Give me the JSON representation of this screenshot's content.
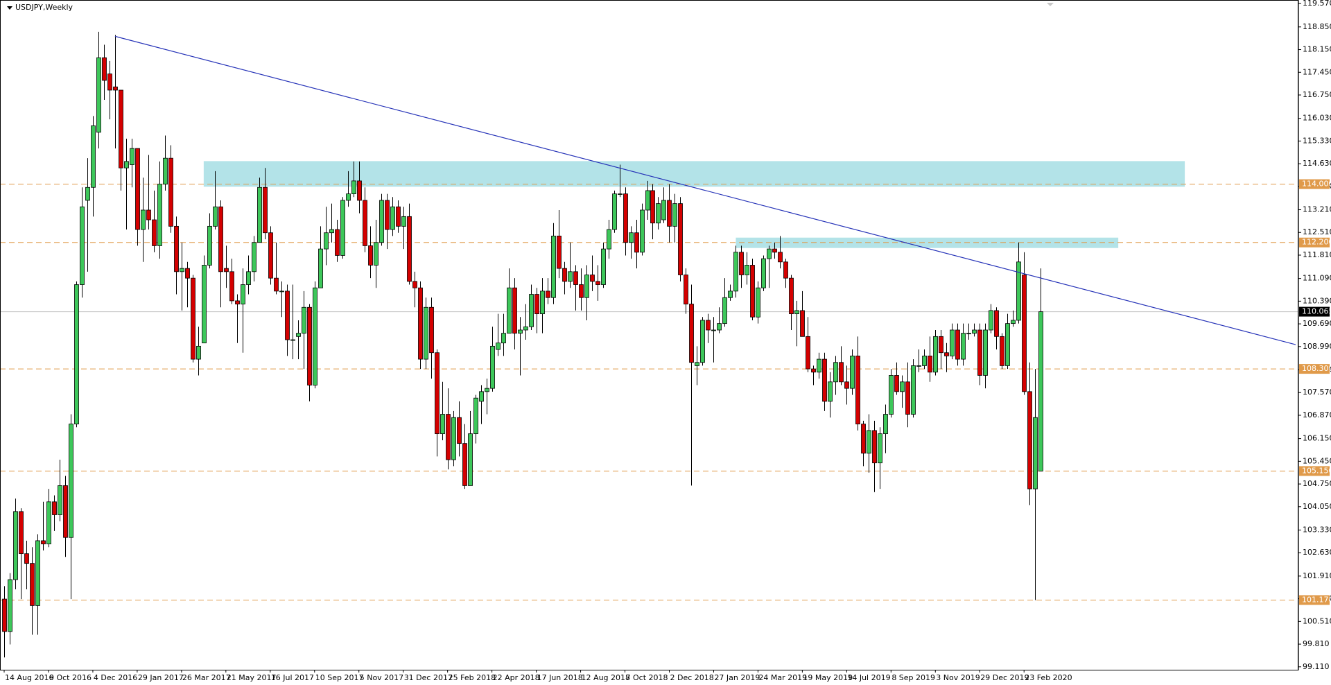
{
  "chart_data": {
    "type": "candlestick",
    "title": "USDJPY,Weekly",
    "up_color": "#3dc75a",
    "down_color": "#d40000",
    "ylim": [
      99.02,
      119.68
    ],
    "yticks": [
      {
        "value": 119.57,
        "label": "119.570"
      },
      {
        "value": 118.85,
        "label": "118.850"
      },
      {
        "value": 118.15,
        "label": "118.150"
      },
      {
        "value": 117.45,
        "label": "117.450"
      },
      {
        "value": 116.75,
        "label": "116.750"
      },
      {
        "value": 116.03,
        "label": "116.030"
      },
      {
        "value": 115.33,
        "label": "115.330"
      },
      {
        "value": 114.63,
        "label": "114.630"
      },
      {
        "value": 113.93,
        "label": "113.930"
      },
      {
        "value": 113.21,
        "label": "113.210"
      },
      {
        "value": 112.51,
        "label": "112.510"
      },
      {
        "value": 111.81,
        "label": "111.810"
      },
      {
        "value": 111.09,
        "label": "111.090"
      },
      {
        "value": 110.39,
        "label": "110.390"
      },
      {
        "value": 109.69,
        "label": "109.690"
      },
      {
        "value": 108.99,
        "label": "108.990"
      },
      {
        "value": 108.27,
        "label": "108.270"
      },
      {
        "value": 107.57,
        "label": "107.570"
      },
      {
        "value": 106.87,
        "label": "106.870"
      },
      {
        "value": 106.15,
        "label": "106.150"
      },
      {
        "value": 105.45,
        "label": "105.450"
      },
      {
        "value": 104.75,
        "label": "104.750"
      },
      {
        "value": 104.05,
        "label": "104.050"
      },
      {
        "value": 103.33,
        "label": "103.330"
      },
      {
        "value": 102.63,
        "label": "102.630"
      },
      {
        "value": 101.91,
        "label": "101.910"
      },
      {
        "value": 101.21,
        "label": "101.210"
      },
      {
        "value": 100.51,
        "label": "100.510"
      },
      {
        "value": 99.81,
        "label": "99.810"
      },
      {
        "value": 99.11,
        "label": "99.110"
      }
    ],
    "xlim": [
      -0.75,
      233.5
    ],
    "xticks": [
      {
        "value": 0,
        "label": "14 Aug 2016"
      },
      {
        "value": 8,
        "label": "9 Oct 2016"
      },
      {
        "value": 16,
        "label": "4 Dec 2016"
      },
      {
        "value": 24,
        "label": "29 Jan 2017"
      },
      {
        "value": 32,
        "label": "26 Mar 2017"
      },
      {
        "value": 40,
        "label": "21 May 2017"
      },
      {
        "value": 48,
        "label": "16 Jul 2017"
      },
      {
        "value": 56,
        "label": "10 Sep 2017"
      },
      {
        "value": 64,
        "label": "5 Nov 2017"
      },
      {
        "value": 72,
        "label": "31 Dec 2017"
      },
      {
        "value": 80,
        "label": "25 Feb 2018"
      },
      {
        "value": 88,
        "label": "22 Apr 2018"
      },
      {
        "value": 96,
        "label": "17 Jun 2018"
      },
      {
        "value": 104,
        "label": "12 Aug 2018"
      },
      {
        "value": 112,
        "label": "7 Oct 2018"
      },
      {
        "value": 120,
        "label": "2 Dec 2018"
      },
      {
        "value": 128,
        "label": "27 Jan 2019"
      },
      {
        "value": 136,
        "label": "24 Mar 2019"
      },
      {
        "value": 144,
        "label": "19 May 2019"
      },
      {
        "value": 152,
        "label": "14 Jul 2019"
      },
      {
        "value": 160,
        "label": "8 Sep 2019"
      },
      {
        "value": 168,
        "label": "3 Nov 2019"
      },
      {
        "value": 176,
        "label": "29 Dec 2019"
      },
      {
        "value": 184,
        "label": "23 Feb 2020"
      }
    ],
    "levels": [
      {
        "value": 114.0,
        "label": "114.000"
      },
      {
        "value": 112.2,
        "label": "112.200"
      },
      {
        "value": 108.3,
        "label": "108.300"
      },
      {
        "value": 105.15,
        "label": "105.150"
      },
      {
        "value": 101.17,
        "label": "101.170"
      }
    ],
    "level_color": "#e09a4a",
    "current_price": {
      "value": 110.065,
      "label": "110.065"
    },
    "zones": [
      {
        "x": [
          36,
          213
        ],
        "y": [
          113.92,
          114.71
        ]
      },
      {
        "x": [
          132,
          201
        ],
        "y": [
          112.03,
          112.35
        ]
      }
    ],
    "zone_color": "#b3e3e8",
    "trendline": {
      "x": [
        20,
        233
      ],
      "y": [
        118.56,
        109.05
      ],
      "color": "#2633b8"
    },
    "candles": [
      [
        101.2,
        101.6,
        99.4,
        100.2
      ],
      [
        100.2,
        102.0,
        99.8,
        101.8
      ],
      [
        101.8,
        104.3,
        101.5,
        103.9
      ],
      [
        103.9,
        104.0,
        101.2,
        102.6
      ],
      [
        102.6,
        103.0,
        101.5,
        102.3
      ],
      [
        102.3,
        102.8,
        100.1,
        101.0
      ],
      [
        101.0,
        103.2,
        100.1,
        103.0
      ],
      [
        103.0,
        104.2,
        102.7,
        102.9
      ],
      [
        102.9,
        104.6,
        102.8,
        104.2
      ],
      [
        104.2,
        104.4,
        103.3,
        103.8
      ],
      [
        103.8,
        105.5,
        103.6,
        104.7
      ],
      [
        104.7,
        105.0,
        102.5,
        103.1
      ],
      [
        103.1,
        106.9,
        101.2,
        106.6
      ],
      [
        106.6,
        111.0,
        106.5,
        110.9
      ],
      [
        110.9,
        113.9,
        110.5,
        113.3
      ],
      [
        113.5,
        114.8,
        111.3,
        113.9
      ],
      [
        113.9,
        116.1,
        113.0,
        115.8
      ],
      [
        115.6,
        118.7,
        115.1,
        117.9
      ],
      [
        117.9,
        118.3,
        116.6,
        117.2
      ],
      [
        117.4,
        117.8,
        116.0,
        116.9
      ],
      [
        117.0,
        118.6,
        115.1,
        116.9
      ],
      [
        116.9,
        116.9,
        113.8,
        114.5
      ],
      [
        114.5,
        115.4,
        112.6,
        114.7
      ],
      [
        114.6,
        115.4,
        113.9,
        115.1
      ],
      [
        115.1,
        115.1,
        112.1,
        112.6
      ],
      [
        112.6,
        114.2,
        111.6,
        113.2
      ],
      [
        113.2,
        114.9,
        112.6,
        112.9
      ],
      [
        112.9,
        113.8,
        111.9,
        112.1
      ],
      [
        112.1,
        114.7,
        111.7,
        114.0
      ],
      [
        114.0,
        115.5,
        113.8,
        114.8
      ],
      [
        114.8,
        115.2,
        112.5,
        112.7
      ],
      [
        112.7,
        113.0,
        110.6,
        111.3
      ],
      [
        111.3,
        112.2,
        110.1,
        111.4
      ],
      [
        111.4,
        111.6,
        110.2,
        111.1
      ],
      [
        111.1,
        111.2,
        108.5,
        108.6
      ],
      [
        108.6,
        109.6,
        108.1,
        109.0
      ],
      [
        109.1,
        111.8,
        109.1,
        111.5
      ],
      [
        111.5,
        113.1,
        111.4,
        112.7
      ],
      [
        112.7,
        114.4,
        112.6,
        113.3
      ],
      [
        113.3,
        113.5,
        110.2,
        111.3
      ],
      [
        111.4,
        112.1,
        110.8,
        111.3
      ],
      [
        111.3,
        111.7,
        110.3,
        110.4
      ],
      [
        110.4,
        110.6,
        109.1,
        110.3
      ],
      [
        110.3,
        111.4,
        108.8,
        110.9
      ],
      [
        110.9,
        111.8,
        110.6,
        111.3
      ],
      [
        111.3,
        112.4,
        111.0,
        112.2
      ],
      [
        112.2,
        114.2,
        112.2,
        113.9
      ],
      [
        113.9,
        114.5,
        112.3,
        112.5
      ],
      [
        112.5,
        112.7,
        110.9,
        111.1
      ],
      [
        111.1,
        112.2,
        110.6,
        110.7
      ],
      [
        110.7,
        111.0,
        109.9,
        110.7
      ],
      [
        110.7,
        110.9,
        108.7,
        109.2
      ],
      [
        109.2,
        110.9,
        108.6,
        109.2
      ],
      [
        109.3,
        109.8,
        108.6,
        109.4
      ],
      [
        109.4,
        110.7,
        108.3,
        110.2
      ],
      [
        110.2,
        110.3,
        107.3,
        107.8
      ],
      [
        107.8,
        111.0,
        107.7,
        110.8
      ],
      [
        110.8,
        112.7,
        110.8,
        112.0
      ],
      [
        112.0,
        113.3,
        111.5,
        112.5
      ],
      [
        112.5,
        113.4,
        112.2,
        112.6
      ],
      [
        112.6,
        112.9,
        111.6,
        111.8
      ],
      [
        111.8,
        113.6,
        111.7,
        113.5
      ],
      [
        113.5,
        114.4,
        113.3,
        113.7
      ],
      [
        113.7,
        114.7,
        113.6,
        114.1
      ],
      [
        114.1,
        114.7,
        113.1,
        113.5
      ],
      [
        113.5,
        113.9,
        111.9,
        112.1
      ],
      [
        112.1,
        112.7,
        111.1,
        111.5
      ],
      [
        111.5,
        112.9,
        110.8,
        112.2
      ],
      [
        112.2,
        113.7,
        112.1,
        113.5
      ],
      [
        113.5,
        113.7,
        112.0,
        112.6
      ],
      [
        112.6,
        113.6,
        112.4,
        113.3
      ],
      [
        113.3,
        113.5,
        112.5,
        112.7
      ],
      [
        112.7,
        113.3,
        112.0,
        113.0
      ],
      [
        113.0,
        113.4,
        110.9,
        111.0
      ],
      [
        111.0,
        111.3,
        110.2,
        110.8
      ],
      [
        110.8,
        111.0,
        108.3,
        108.6
      ],
      [
        108.6,
        110.5,
        108.3,
        110.2
      ],
      [
        110.2,
        110.5,
        108.0,
        108.8
      ],
      [
        108.8,
        108.9,
        105.6,
        106.3
      ],
      [
        106.3,
        107.9,
        106.1,
        106.9
      ],
      [
        106.9,
        107.7,
        105.2,
        105.5
      ],
      [
        105.5,
        107.0,
        105.3,
        106.8
      ],
      [
        106.8,
        107.3,
        105.6,
        106.0
      ],
      [
        106.0,
        106.6,
        104.6,
        104.7
      ],
      [
        104.7,
        107.0,
        104.7,
        106.3
      ],
      [
        106.3,
        107.5,
        106.0,
        107.4
      ],
      [
        107.3,
        107.8,
        106.6,
        107.6
      ],
      [
        107.6,
        108.0,
        106.9,
        107.7
      ],
      [
        107.7,
        109.6,
        107.6,
        109.0
      ],
      [
        108.9,
        110.0,
        108.7,
        109.1
      ],
      [
        109.1,
        110.0,
        108.7,
        109.4
      ],
      [
        109.4,
        111.4,
        109.4,
        110.8
      ],
      [
        110.8,
        111.1,
        108.9,
        109.4
      ],
      [
        109.4,
        109.9,
        108.1,
        109.5
      ],
      [
        109.5,
        110.3,
        109.2,
        109.6
      ],
      [
        109.6,
        110.9,
        109.5,
        110.6
      ],
      [
        110.6,
        110.8,
        109.4,
        110.0
      ],
      [
        110.0,
        111.1,
        109.4,
        110.7
      ],
      [
        110.7,
        111.1,
        110.3,
        110.5
      ],
      [
        110.5,
        112.8,
        110.3,
        112.4
      ],
      [
        112.4,
        113.2,
        111.1,
        111.4
      ],
      [
        111.4,
        111.6,
        110.6,
        111.0
      ],
      [
        111.0,
        112.2,
        110.8,
        111.3
      ],
      [
        111.3,
        111.5,
        110.1,
        110.9
      ],
      [
        110.9,
        111.4,
        110.1,
        110.5
      ],
      [
        110.5,
        111.5,
        109.8,
        111.2
      ],
      [
        111.2,
        111.8,
        110.7,
        111.0
      ],
      [
        111.0,
        111.5,
        110.4,
        110.9
      ],
      [
        110.9,
        112.2,
        110.8,
        112.0
      ],
      [
        112.0,
        112.9,
        111.7,
        112.6
      ],
      [
        112.6,
        113.8,
        112.5,
        113.7
      ],
      [
        113.7,
        114.6,
        113.6,
        113.7
      ],
      [
        113.7,
        113.9,
        111.8,
        112.2
      ],
      [
        112.2,
        112.7,
        111.7,
        112.5
      ],
      [
        112.5,
        112.9,
        111.4,
        111.9
      ],
      [
        111.9,
        113.4,
        111.8,
        113.2
      ],
      [
        113.2,
        114.1,
        112.9,
        113.8
      ],
      [
        113.8,
        114.0,
        112.3,
        112.8
      ],
      [
        112.8,
        113.6,
        112.6,
        113.4
      ],
      [
        112.9,
        113.9,
        112.8,
        113.5
      ],
      [
        113.5,
        114.0,
        112.2,
        112.7
      ],
      [
        112.7,
        113.7,
        112.2,
        113.4
      ],
      [
        113.4,
        113.6,
        111.0,
        111.2
      ],
      [
        111.2,
        111.4,
        110.0,
        110.3
      ],
      [
        110.3,
        110.9,
        104.7,
        108.5
      ],
      [
        108.4,
        109.0,
        107.8,
        108.5
      ],
      [
        108.5,
        109.9,
        108.4,
        109.8
      ],
      [
        109.8,
        110.0,
        109.1,
        109.5
      ],
      [
        109.5,
        109.9,
        108.5,
        109.5
      ],
      [
        109.5,
        110.2,
        109.4,
        109.7
      ],
      [
        109.7,
        111.1,
        109.6,
        110.5
      ],
      [
        110.5,
        110.9,
        110.4,
        110.7
      ],
      [
        110.7,
        112.1,
        110.5,
        111.9
      ],
      [
        111.9,
        112.1,
        110.8,
        111.2
      ],
      [
        111.2,
        111.9,
        110.9,
        111.5
      ],
      [
        111.5,
        111.7,
        109.8,
        109.9
      ],
      [
        109.9,
        111.0,
        109.7,
        110.8
      ],
      [
        110.8,
        111.8,
        110.7,
        111.7
      ],
      [
        111.7,
        112.1,
        110.8,
        112.0
      ],
      [
        112.0,
        112.2,
        111.7,
        111.9
      ],
      [
        111.9,
        112.4,
        111.4,
        111.6
      ],
      [
        111.6,
        111.7,
        110.8,
        111.1
      ],
      [
        111.1,
        111.2,
        109.5,
        110.0
      ],
      [
        110.0,
        110.4,
        109.0,
        110.1
      ],
      [
        110.1,
        110.7,
        109.3,
        109.3
      ],
      [
        109.3,
        109.9,
        108.2,
        108.3
      ],
      [
        108.3,
        108.4,
        107.8,
        108.2
      ],
      [
        108.2,
        108.8,
        108.0,
        108.6
      ],
      [
        108.6,
        108.8,
        107.0,
        107.3
      ],
      [
        107.3,
        108.2,
        106.8,
        107.9
      ],
      [
        107.9,
        108.7,
        107.5,
        108.5
      ],
      [
        108.5,
        109.0,
        107.8,
        107.9
      ],
      [
        107.9,
        108.4,
        107.2,
        107.7
      ],
      [
        107.7,
        108.9,
        107.5,
        108.7
      ],
      [
        108.7,
        109.3,
        106.4,
        106.6
      ],
      [
        106.6,
        106.7,
        105.3,
        105.7
      ],
      [
        105.7,
        106.9,
        105.1,
        106.4
      ],
      [
        106.4,
        106.7,
        104.5,
        105.4
      ],
      [
        105.4,
        106.5,
        104.6,
        106.3
      ],
      [
        106.3,
        107.2,
        105.7,
        106.9
      ],
      [
        106.9,
        108.3,
        106.8,
        108.1
      ],
      [
        108.1,
        108.5,
        107.5,
        107.6
      ],
      [
        107.6,
        108.1,
        107.1,
        107.9
      ],
      [
        107.9,
        108.5,
        106.5,
        106.9
      ],
      [
        106.9,
        108.6,
        106.8,
        108.4
      ],
      [
        108.4,
        108.9,
        108.2,
        108.4
      ],
      [
        108.4,
        108.9,
        108.3,
        108.7
      ],
      [
        108.7,
        109.3,
        107.9,
        108.2
      ],
      [
        108.2,
        109.5,
        108.1,
        109.3
      ],
      [
        109.3,
        109.5,
        108.3,
        108.8
      ],
      [
        108.8,
        109.1,
        108.2,
        108.7
      ],
      [
        108.7,
        109.7,
        108.6,
        109.5
      ],
      [
        109.5,
        109.7,
        108.4,
        108.6
      ],
      [
        108.6,
        109.7,
        108.4,
        109.4
      ],
      [
        109.4,
        109.7,
        109.2,
        109.4
      ],
      [
        109.4,
        109.7,
        109.3,
        109.5
      ],
      [
        109.5,
        109.7,
        107.8,
        108.1
      ],
      [
        108.1,
        109.7,
        107.7,
        109.5
      ],
      [
        109.5,
        110.3,
        109.4,
        110.1
      ],
      [
        110.1,
        110.2,
        108.9,
        109.3
      ],
      [
        109.3,
        109.4,
        108.3,
        108.4
      ],
      [
        108.4,
        110.0,
        108.3,
        109.7
      ],
      [
        109.7,
        110.1,
        109.6,
        109.8
      ],
      [
        109.8,
        112.2,
        109.7,
        111.6
      ],
      [
        111.2,
        111.9,
        107.5,
        107.6
      ],
      [
        107.6,
        108.5,
        104.1,
        104.6
      ],
      [
        104.6,
        108.3,
        101.17,
        106.8
      ],
      [
        105.15,
        111.4,
        105.15,
        110.065
      ]
    ]
  }
}
